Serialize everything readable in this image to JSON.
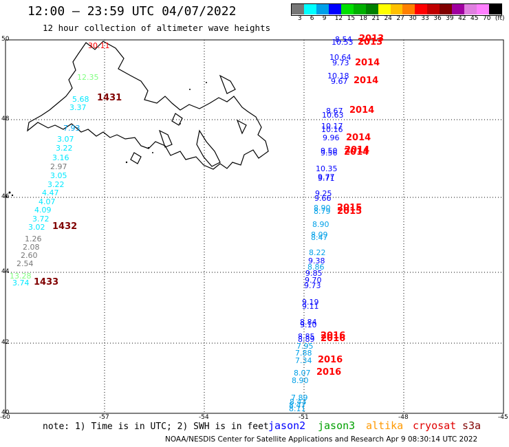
{
  "title": "12:00 – 23:59 UTC 04/07/2022",
  "subtitle": "12 hour collection of altimeter wave heights",
  "legend": {
    "colors": [
      "#777777",
      "#00ffff",
      "#00a0e8",
      "#0000ff",
      "#00e000",
      "#00b000",
      "#008000",
      "#ffff00",
      "#ffc000",
      "#ff8000",
      "#ff0000",
      "#c00000",
      "#800000",
      "#a000a0",
      "#e080e0",
      "#ff80ff",
      "#000000"
    ],
    "labels": [
      "3",
      "6",
      "9",
      "12",
      "15",
      "18",
      "21",
      "24",
      "27",
      "30",
      "33",
      "36",
      "39",
      "42",
      "45",
      "70",
      "(ft)"
    ]
  },
  "axes": {
    "lat_labels": [
      "50",
      "48",
      "46",
      "44",
      "42",
      "40"
    ],
    "lon_labels": [
      "-60",
      "-57",
      "-54",
      "-51",
      "-48",
      "-45"
    ]
  },
  "west_track": [
    {
      "text": "30.11",
      "color": "#ff0000"
    },
    {
      "text": "12.35",
      "color": "#80ff80"
    },
    {
      "text": "5.68",
      "color": "#00e8ff"
    },
    {
      "text": "3.37",
      "color": "#00e8ff"
    },
    {
      "text": "7.93",
      "color": "#00a0e8"
    },
    {
      "text": "3.07",
      "color": "#00e8ff"
    },
    {
      "text": "3.22",
      "color": "#00e8ff"
    },
    {
      "text": "3.16",
      "color": "#00e8ff"
    },
    {
      "text": "2.97",
      "color": "#777777"
    },
    {
      "text": "3.05",
      "color": "#00e8ff"
    },
    {
      "text": "3.22",
      "color": "#00e8ff"
    },
    {
      "text": "4.47",
      "color": "#00e8ff"
    },
    {
      "text": "4.07",
      "color": "#00e8ff"
    },
    {
      "text": "4.09",
      "color": "#00e8ff"
    },
    {
      "text": "3.72",
      "color": "#00e8ff"
    },
    {
      "text": "3.02",
      "color": "#00e8ff"
    },
    {
      "text": "1.26",
      "color": "#777777"
    },
    {
      "text": "2.08",
      "color": "#777777"
    },
    {
      "text": "2.60",
      "color": "#777777"
    },
    {
      "text": "2.54",
      "color": "#777777"
    },
    {
      "text": "13.28",
      "color": "#80ff80"
    },
    {
      "text": "3.74",
      "color": "#00e8ff"
    }
  ],
  "west_pass": [
    {
      "text": "1431",
      "color": "#800000"
    },
    {
      "text": "1432",
      "color": "#800000"
    },
    {
      "text": "1433",
      "color": "#800000"
    }
  ],
  "east_track": [
    {
      "text": "8.54",
      "color": "#0000ff"
    },
    {
      "text": "10.53",
      "color": "#0000ff"
    },
    {
      "text": "10.64",
      "color": "#0000ff"
    },
    {
      "text": "9.73",
      "color": "#0000ff"
    },
    {
      "text": "10.18",
      "color": "#0000ff"
    },
    {
      "text": "9.67",
      "color": "#0000ff"
    },
    {
      "text": "8.67",
      "color": "#0000ff"
    },
    {
      "text": "10.63",
      "color": "#0000ff"
    },
    {
      "text": "10.17",
      "color": "#0000ff"
    },
    {
      "text": "10.16",
      "color": "#0000ff"
    },
    {
      "text": "9.96",
      "color": "#0000ff"
    },
    {
      "text": "9.50",
      "color": "#0000ff"
    },
    {
      "text": "9.56",
      "color": "#0000ff"
    },
    {
      "text": "10.35",
      "color": "#0000ff"
    },
    {
      "text": "9.77",
      "color": "#0000ff"
    },
    {
      "text": "9.71",
      "color": "#0000ff"
    },
    {
      "text": "9.25",
      "color": "#0000ff"
    },
    {
      "text": "9.66",
      "color": "#0000ff"
    },
    {
      "text": "8.90",
      "color": "#00a0e8"
    },
    {
      "text": "8.79",
      "color": "#00a0e8"
    },
    {
      "text": "8.90",
      "color": "#00a0e8"
    },
    {
      "text": "8.09",
      "color": "#00a0e8"
    },
    {
      "text": "8.47",
      "color": "#00a0e8"
    },
    {
      "text": "8.22",
      "color": "#00a0e8"
    },
    {
      "text": "9.38",
      "color": "#0000ff"
    },
    {
      "text": "8.86",
      "color": "#00a0e8"
    },
    {
      "text": "9.85",
      "color": "#0000ff"
    },
    {
      "text": "9.70",
      "color": "#0000ff"
    },
    {
      "text": "9.73",
      "color": "#0000ff"
    },
    {
      "text": "9.19",
      "color": "#0000ff"
    },
    {
      "text": "9.11",
      "color": "#0000ff"
    },
    {
      "text": "8.84",
      "color": "#0000ff"
    },
    {
      "text": "9.10",
      "color": "#0000ff"
    },
    {
      "text": "8.85",
      "color": "#0000ff"
    },
    {
      "text": "8.89",
      "color": "#0000ff"
    },
    {
      "text": "7.95",
      "color": "#00a0e8"
    },
    {
      "text": "7.88",
      "color": "#00a0e8"
    },
    {
      "text": "7.34",
      "color": "#00a0e8"
    },
    {
      "text": "8.07",
      "color": "#00a0e8"
    },
    {
      "text": "8.90",
      "color": "#00a0e8"
    },
    {
      "text": "7.89",
      "color": "#00a0e8"
    },
    {
      "text": "8.43",
      "color": "#00a0e8"
    },
    {
      "text": "8.47",
      "color": "#00a0e8"
    },
    {
      "text": "8.11",
      "color": "#00a0e8"
    }
  ],
  "east_pass": [
    {
      "text": "2013",
      "color": "#ff0000"
    },
    {
      "text": "2013",
      "color": "#ff0000"
    },
    {
      "text": "2014",
      "color": "#ff0000"
    },
    {
      "text": "2014",
      "color": "#ff0000"
    },
    {
      "text": "2014",
      "color": "#ff0000"
    },
    {
      "text": "2014",
      "color": "#ff0000"
    },
    {
      "text": "2014",
      "color": "#ff0000"
    },
    {
      "text": "2014",
      "color": "#ff0000"
    },
    {
      "text": "2015",
      "color": "#ff0000"
    },
    {
      "text": "2015",
      "color": "#ff0000"
    },
    {
      "text": "2016",
      "color": "#ff0000"
    },
    {
      "text": "2016",
      "color": "#ff0000"
    },
    {
      "text": "2016",
      "color": "#ff0000"
    },
    {
      "text": "2016",
      "color": "#ff0000"
    }
  ],
  "note": "note: 1) Time is in UTC; 2) SWH is in feet",
  "satellites": [
    {
      "name": "jason2",
      "color": "#0000ff"
    },
    {
      "name": "jason3",
      "color": "#00a000"
    },
    {
      "name": "altika",
      "color": "#ff9900"
    },
    {
      "name": "cryosat",
      "color": "#e00000"
    },
    {
      "name": "s3a",
      "color": "#800000"
    }
  ],
  "credit": "NOAA/NESDIS Center for Satellite Applications and Research   Apr  9 08:30:14 UTC 2022"
}
